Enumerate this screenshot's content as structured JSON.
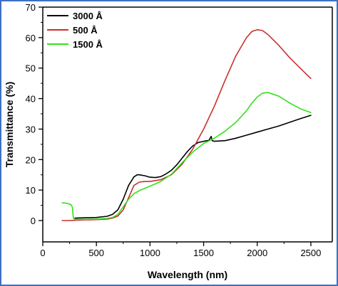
{
  "chart_data": {
    "type": "line",
    "title": "",
    "xlabel": "Wavelength (nm)",
    "ylabel": "Transmittance (%)",
    "xlim": [
      0,
      2700
    ],
    "ylim": [
      -7,
      70
    ],
    "xticks": [
      0,
      500,
      1000,
      1500,
      2000,
      2500
    ],
    "yticks": [
      0,
      10,
      20,
      30,
      40,
      50,
      60,
      70
    ],
    "grid": false,
    "legend_position": "top-left",
    "series": [
      {
        "name": "3000 Å",
        "color": "#000000",
        "x": [
          300,
          400,
          500,
          600,
          650,
          700,
          750,
          800,
          850,
          880,
          900,
          950,
          1000,
          1050,
          1100,
          1150,
          1200,
          1250,
          1300,
          1350,
          1400,
          1450,
          1500,
          1550,
          1570,
          1580,
          1600,
          1700,
          1800,
          1900,
          2000,
          2100,
          2200,
          2300,
          2400,
          2500
        ],
        "y": [
          0.8,
          0.9,
          1.0,
          1.4,
          2.0,
          3.5,
          7.0,
          11.5,
          14.3,
          15.0,
          15.0,
          14.7,
          14.2,
          14.1,
          14.4,
          15.3,
          16.5,
          18.3,
          20.5,
          22.7,
          24.5,
          25.6,
          26.0,
          26.3,
          27.6,
          26.2,
          26.0,
          26.2,
          27.0,
          28.0,
          29.0,
          30.0,
          31.0,
          32.2,
          33.4,
          34.5
        ]
      },
      {
        "name": "500 Å",
        "color": "#c9302c",
        "x": [
          180,
          250,
          300,
          400,
          500,
          600,
          650,
          700,
          750,
          800,
          850,
          900,
          950,
          1000,
          1100,
          1200,
          1300,
          1400,
          1500,
          1600,
          1700,
          1800,
          1900,
          1950,
          2000,
          2050,
          2100,
          2200,
          2300,
          2400,
          2500
        ],
        "y": [
          0.0,
          0.0,
          0.1,
          0.2,
          0.3,
          0.5,
          0.8,
          1.5,
          3.5,
          7.5,
          11.5,
          12.6,
          12.8,
          12.8,
          13.4,
          15.0,
          18.5,
          23.5,
          30.0,
          37.5,
          46.0,
          54.0,
          60.0,
          62.0,
          62.6,
          62.3,
          61.0,
          57.5,
          53.5,
          50.0,
          46.6
        ]
      },
      {
        "name": "1500 Å",
        "color": "#33e01a",
        "x": [
          180,
          220,
          260,
          275,
          285,
          300,
          400,
          500,
          600,
          650,
          700,
          750,
          800,
          850,
          900,
          1000,
          1100,
          1200,
          1300,
          1400,
          1500,
          1600,
          1700,
          1800,
          1900,
          1950,
          2000,
          2050,
          2100,
          2200,
          2300,
          2400,
          2500
        ],
        "y": [
          5.8,
          5.7,
          5.3,
          4.5,
          0.8,
          0.4,
          0.4,
          0.5,
          0.7,
          1.0,
          2.0,
          4.5,
          7.0,
          8.8,
          9.8,
          11.3,
          12.8,
          15.2,
          19.0,
          22.5,
          25.3,
          27.0,
          29.3,
          32.2,
          36.0,
          38.5,
          40.5,
          41.8,
          42.0,
          40.8,
          38.6,
          36.7,
          35.4
        ]
      }
    ]
  }
}
